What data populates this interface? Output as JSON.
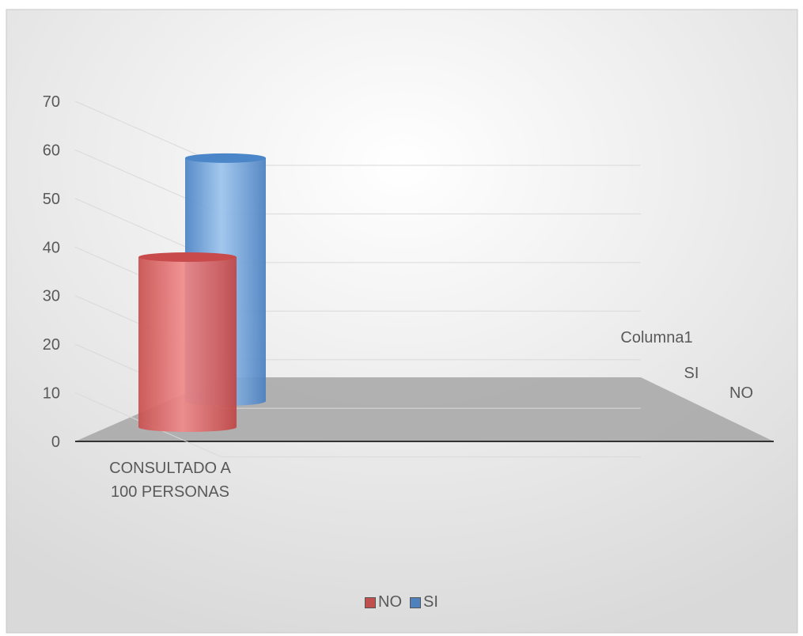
{
  "chart_data": {
    "type": "bar",
    "subtype": "3d-cylinder",
    "categories": [
      "CONSULTADO A 100 PERSONAS"
    ],
    "series": [
      {
        "name": "NO",
        "values": [
          35
        ],
        "color": "#e06666"
      },
      {
        "name": "SI",
        "values": [
          50
        ],
        "color": "#6fa8dc"
      },
      {
        "name": "Columna1",
        "values": [
          null
        ]
      }
    ],
    "depth_axis_labels": [
      "Columna1",
      "SI",
      "NO"
    ],
    "ylim": [
      0,
      70
    ],
    "y_ticks": [
      0,
      10,
      20,
      30,
      40,
      50,
      60,
      70
    ],
    "grid": true,
    "legend_position": "bottom",
    "legend": [
      {
        "label": "NO",
        "color": "#c0504d"
      },
      {
        "label": "SI",
        "color": "#4f81bd"
      }
    ]
  }
}
